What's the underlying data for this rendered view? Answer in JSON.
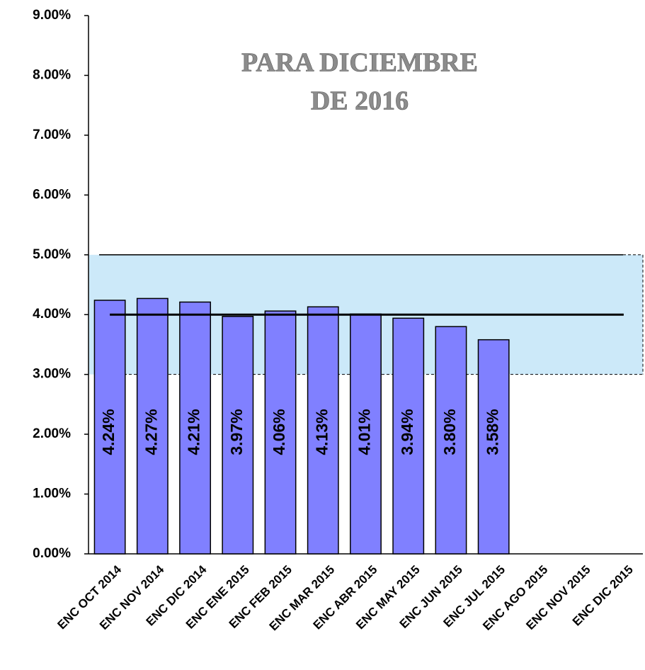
{
  "chart_data": {
    "type": "bar",
    "title": [
      "PARA DICIEMBRE",
      "DE 2016"
    ],
    "categories": [
      "ENC OCT 2014",
      "ENC NOV 2014",
      "ENC DIC 2014",
      "ENC ENE 2015",
      "ENC FEB 2015",
      "ENC MAR 2015",
      "ENC ABR 2015",
      "ENC MAY 2015",
      "ENC JUN 2015",
      "ENC JUL 2015",
      "ENC AGO 2015",
      "ENC NOV 2015",
      "ENC DIC 2015"
    ],
    "values": [
      4.24,
      4.27,
      4.21,
      3.97,
      4.06,
      4.13,
      4.01,
      3.94,
      3.8,
      3.58,
      null,
      null,
      null
    ],
    "value_labels": [
      "4.24%",
      "4.27%",
      "4.21%",
      "3.97%",
      "4.06%",
      "4.13%",
      "4.01%",
      "3.94%",
      "3.80%",
      "3.58%",
      null,
      null,
      null
    ],
    "color": "#8080ff",
    "target_range": [
      3,
      5
    ],
    "target_color": "#cce9f9",
    "reference_line": 4,
    "ylim": [
      0,
      9
    ],
    "yticks": [
      {
        "value": 0,
        "label": "0.00%"
      },
      {
        "value": 1,
        "label": "1.00%"
      },
      {
        "value": 2,
        "label": "2.00%"
      },
      {
        "value": 3,
        "label": "3.00%"
      },
      {
        "value": 4,
        "label": "4.00%"
      },
      {
        "value": 5,
        "label": "5.00%"
      },
      {
        "value": 6,
        "label": "6.00%"
      },
      {
        "value": 7,
        "label": "7.00%"
      },
      {
        "value": 8,
        "label": "8.00%"
      },
      {
        "value": 9,
        "label": "9.00%"
      }
    ]
  }
}
